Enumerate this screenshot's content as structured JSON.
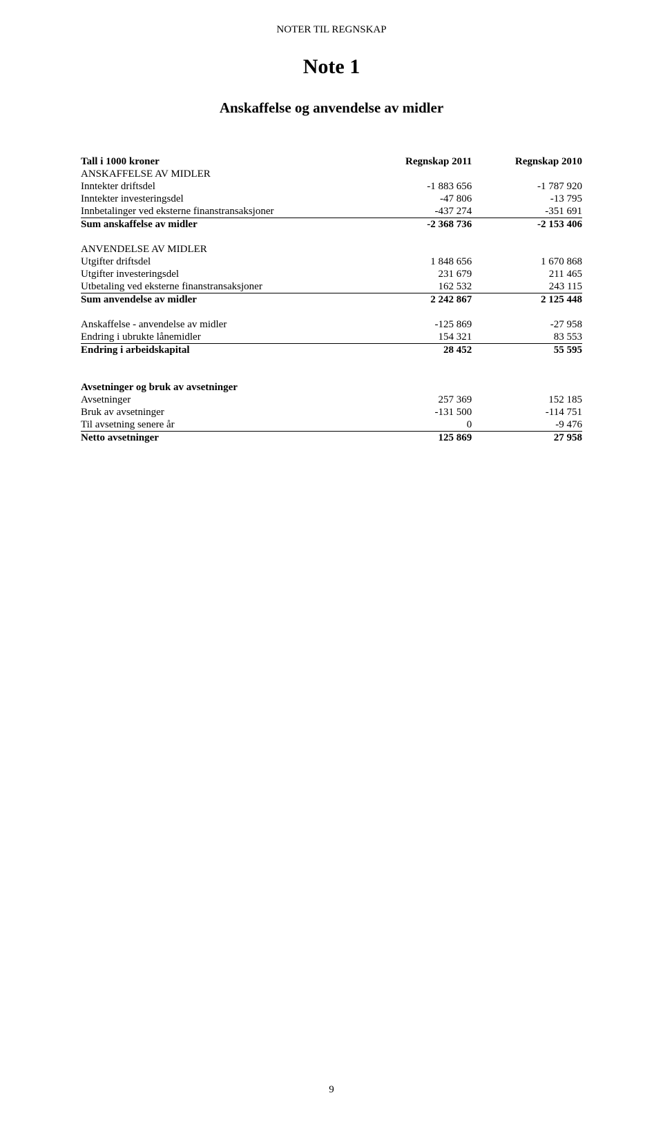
{
  "docHeader": "NOTER TIL REGNSKAP",
  "noteTitle": "Note 1",
  "pageTitle": "Anskaffelse og anvendelse av midler",
  "colHeaders": {
    "label": "Tall i 1000 kroner",
    "c1": "Regnskap 2011",
    "c2": "Regnskap 2010"
  },
  "sectionA": {
    "heading": "ANSKAFFELSE AV MIDLER",
    "rows": [
      {
        "label": "Inntekter driftsdel",
        "v1": "-1 883 656",
        "v2": "-1 787 920"
      },
      {
        "label": "Inntekter investeringsdel",
        "v1": "-47 806",
        "v2": "-13 795"
      },
      {
        "label": "Innbetalinger ved eksterne finanstransaksjoner",
        "v1": "-437 274",
        "v2": "-351 691"
      }
    ],
    "sum": {
      "label": "Sum anskaffelse av midler",
      "v1": "-2 368 736",
      "v2": "-2 153 406"
    }
  },
  "sectionB": {
    "heading": "ANVENDELSE AV MIDLER",
    "rows": [
      {
        "label": "Utgifter driftsdel",
        "v1": "1 848 656",
        "v2": "1 670 868"
      },
      {
        "label": "Utgifter investeringsdel",
        "v1": "231 679",
        "v2": "211 465"
      },
      {
        "label": "Utbetaling ved eksterne finanstransaksjoner",
        "v1": "162 532",
        "v2": "243 115"
      }
    ],
    "sum": {
      "label": "Sum anvendelse av midler",
      "v1": "2 242 867",
      "v2": "2 125 448"
    }
  },
  "sectionC": {
    "rows": [
      {
        "label": "Anskaffelse - anvendelse av midler",
        "v1": "-125 869",
        "v2": "-27 958"
      },
      {
        "label": "Endring i ubrukte lånemidler",
        "v1": "154 321",
        "v2": "83 553"
      }
    ],
    "sum": {
      "label": "Endring i arbeidskapital",
      "v1": "28 452",
      "v2": "55 595"
    }
  },
  "sectionD": {
    "heading": "Avsetninger og bruk av avsetninger",
    "rows": [
      {
        "label": "Avsetninger",
        "v1": "257 369",
        "v2": "152 185"
      },
      {
        "label": "Bruk av avsetninger",
        "v1": "-131 500",
        "v2": "-114 751"
      },
      {
        "label": "Til avsetning senere år",
        "v1": "0",
        "v2": "-9 476"
      }
    ],
    "sum": {
      "label": "Netto avsetninger",
      "v1": "125 869",
      "v2": "27 958"
    }
  },
  "pageNumber": "9"
}
